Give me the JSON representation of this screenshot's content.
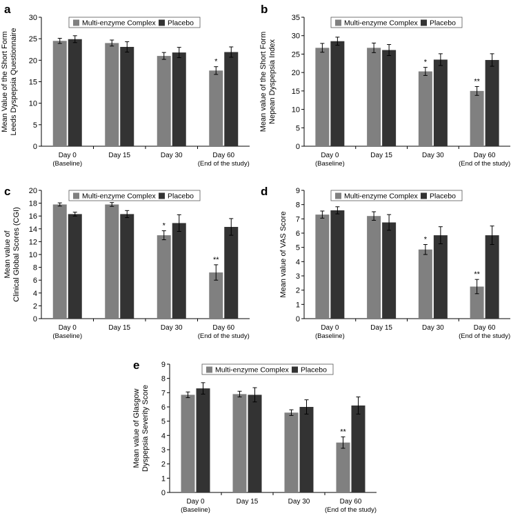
{
  "figure": {
    "legend": {
      "series_names": [
        "Multi-enzyme Complex",
        "Placebo"
      ]
    }
  },
  "chart_data": [
    {
      "panel": "a",
      "type": "bar",
      "title": "",
      "ylabel": [
        "Mean Value of the Short Form",
        "Leeds Dyspepsia Questionnaire"
      ],
      "xlabel": "",
      "ylim": [
        0,
        30
      ],
      "yticks": [
        0,
        5,
        10,
        15,
        20,
        25,
        30
      ],
      "categories": [
        "Day 0",
        "Day 15",
        "Day 30",
        "Day 60"
      ],
      "category_sublabels": [
        "(Baseline)",
        "",
        "",
        "(End of the study)"
      ],
      "series": [
        {
          "name": "Multi-enzyme Complex",
          "color": "#808080",
          "values": [
            24.5,
            24.0,
            21.0,
            17.6
          ],
          "errors": [
            0.6,
            0.7,
            0.8,
            0.9
          ],
          "annotations": [
            "",
            "",
            "",
            "*"
          ]
        },
        {
          "name": "Placebo",
          "color": "#333333",
          "values": [
            24.9,
            23.1,
            21.8,
            21.9
          ],
          "errors": [
            0.8,
            1.2,
            1.2,
            1.2
          ],
          "annotations": [
            "",
            "",
            "",
            ""
          ]
        }
      ]
    },
    {
      "panel": "b",
      "type": "bar",
      "title": "",
      "ylabel": [
        "Mean value of the Short Form",
        "Nepean Dyspepsia Index"
      ],
      "xlabel": "",
      "ylim": [
        0,
        35
      ],
      "yticks": [
        0,
        5,
        10,
        15,
        20,
        25,
        30,
        35
      ],
      "categories": [
        "Day 0",
        "Day 15",
        "Day 30",
        "Day 60"
      ],
      "category_sublabels": [
        "(Baseline)",
        "",
        "",
        "(End of the study)"
      ],
      "series": [
        {
          "name": "Multi-enzyme Complex",
          "color": "#808080",
          "values": [
            26.7,
            26.7,
            20.3,
            15.0
          ],
          "errors": [
            1.2,
            1.3,
            1.1,
            1.2
          ],
          "annotations": [
            "",
            "",
            "*",
            "**"
          ]
        },
        {
          "name": "Placebo",
          "color": "#333333",
          "values": [
            28.5,
            26.1,
            23.5,
            23.4
          ],
          "errors": [
            1.1,
            1.5,
            1.6,
            1.7
          ],
          "annotations": [
            "",
            "",
            "",
            ""
          ]
        }
      ]
    },
    {
      "panel": "c",
      "type": "bar",
      "title": "",
      "ylabel": [
        "Mean value of",
        "Clinical Global Scores (CGI)"
      ],
      "xlabel": "",
      "ylim": [
        0,
        20
      ],
      "yticks": [
        0,
        2,
        4,
        6,
        8,
        10,
        12,
        14,
        16,
        18,
        20
      ],
      "categories": [
        "Day 0",
        "Day 15",
        "Day 30",
        "Day 60"
      ],
      "category_sublabels": [
        "(Baseline)",
        "",
        "",
        "(End of the study)"
      ],
      "series": [
        {
          "name": "Multi-enzyme Complex",
          "color": "#808080",
          "values": [
            17.8,
            17.8,
            13.0,
            7.2
          ],
          "errors": [
            0.25,
            0.3,
            0.7,
            1.2
          ],
          "annotations": [
            "",
            "",
            "*",
            "**"
          ]
        },
        {
          "name": "Placebo",
          "color": "#333333",
          "values": [
            16.3,
            16.3,
            14.9,
            14.3
          ],
          "errors": [
            0.3,
            0.55,
            1.3,
            1.3
          ],
          "annotations": [
            "",
            "",
            "",
            ""
          ]
        }
      ]
    },
    {
      "panel": "d",
      "type": "bar",
      "title": "",
      "ylabel": [
        "Mean value of VAS Score"
      ],
      "xlabel": "",
      "ylim": [
        0,
        9
      ],
      "yticks": [
        0,
        1,
        2,
        3,
        4,
        5,
        6,
        7,
        8,
        9
      ],
      "categories": [
        "Day 0",
        "Day 15",
        "Day 30",
        "Day 60"
      ],
      "category_sublabels": [
        "(Baseline)",
        "",
        "",
        "(End of the study)"
      ],
      "series": [
        {
          "name": "Multi-enzyme Complex",
          "color": "#808080",
          "values": [
            7.3,
            7.2,
            4.85,
            2.25
          ],
          "errors": [
            0.25,
            0.3,
            0.35,
            0.5
          ],
          "annotations": [
            "",
            "",
            "*",
            "**"
          ]
        },
        {
          "name": "Placebo",
          "color": "#333333",
          "values": [
            7.6,
            6.75,
            5.85,
            5.85
          ],
          "errors": [
            0.25,
            0.55,
            0.6,
            0.65
          ],
          "annotations": [
            "",
            "",
            "",
            ""
          ]
        }
      ]
    },
    {
      "panel": "e",
      "type": "bar",
      "title": "",
      "ylabel": [
        "Mean value of Glasgow",
        "Dyspepsia Severity Score"
      ],
      "xlabel": "",
      "ylim": [
        0,
        9
      ],
      "yticks": [
        0,
        1,
        2,
        3,
        4,
        5,
        6,
        7,
        8,
        9
      ],
      "categories": [
        "Day 0",
        "Day 15",
        "Day 30",
        "Day 60"
      ],
      "category_sublabels": [
        "(Baseline)",
        "",
        "",
        "(End of the study)"
      ],
      "series": [
        {
          "name": "Multi-enzyme Complex",
          "color": "#808080",
          "values": [
            6.85,
            6.9,
            5.6,
            3.5
          ],
          "errors": [
            0.2,
            0.2,
            0.2,
            0.4
          ],
          "annotations": [
            "",
            "",
            "",
            "**"
          ]
        },
        {
          "name": "Placebo",
          "color": "#333333",
          "values": [
            7.3,
            6.85,
            6.0,
            6.1
          ],
          "errors": [
            0.4,
            0.5,
            0.5,
            0.6
          ],
          "annotations": [
            "",
            "",
            "",
            ""
          ]
        }
      ]
    }
  ]
}
